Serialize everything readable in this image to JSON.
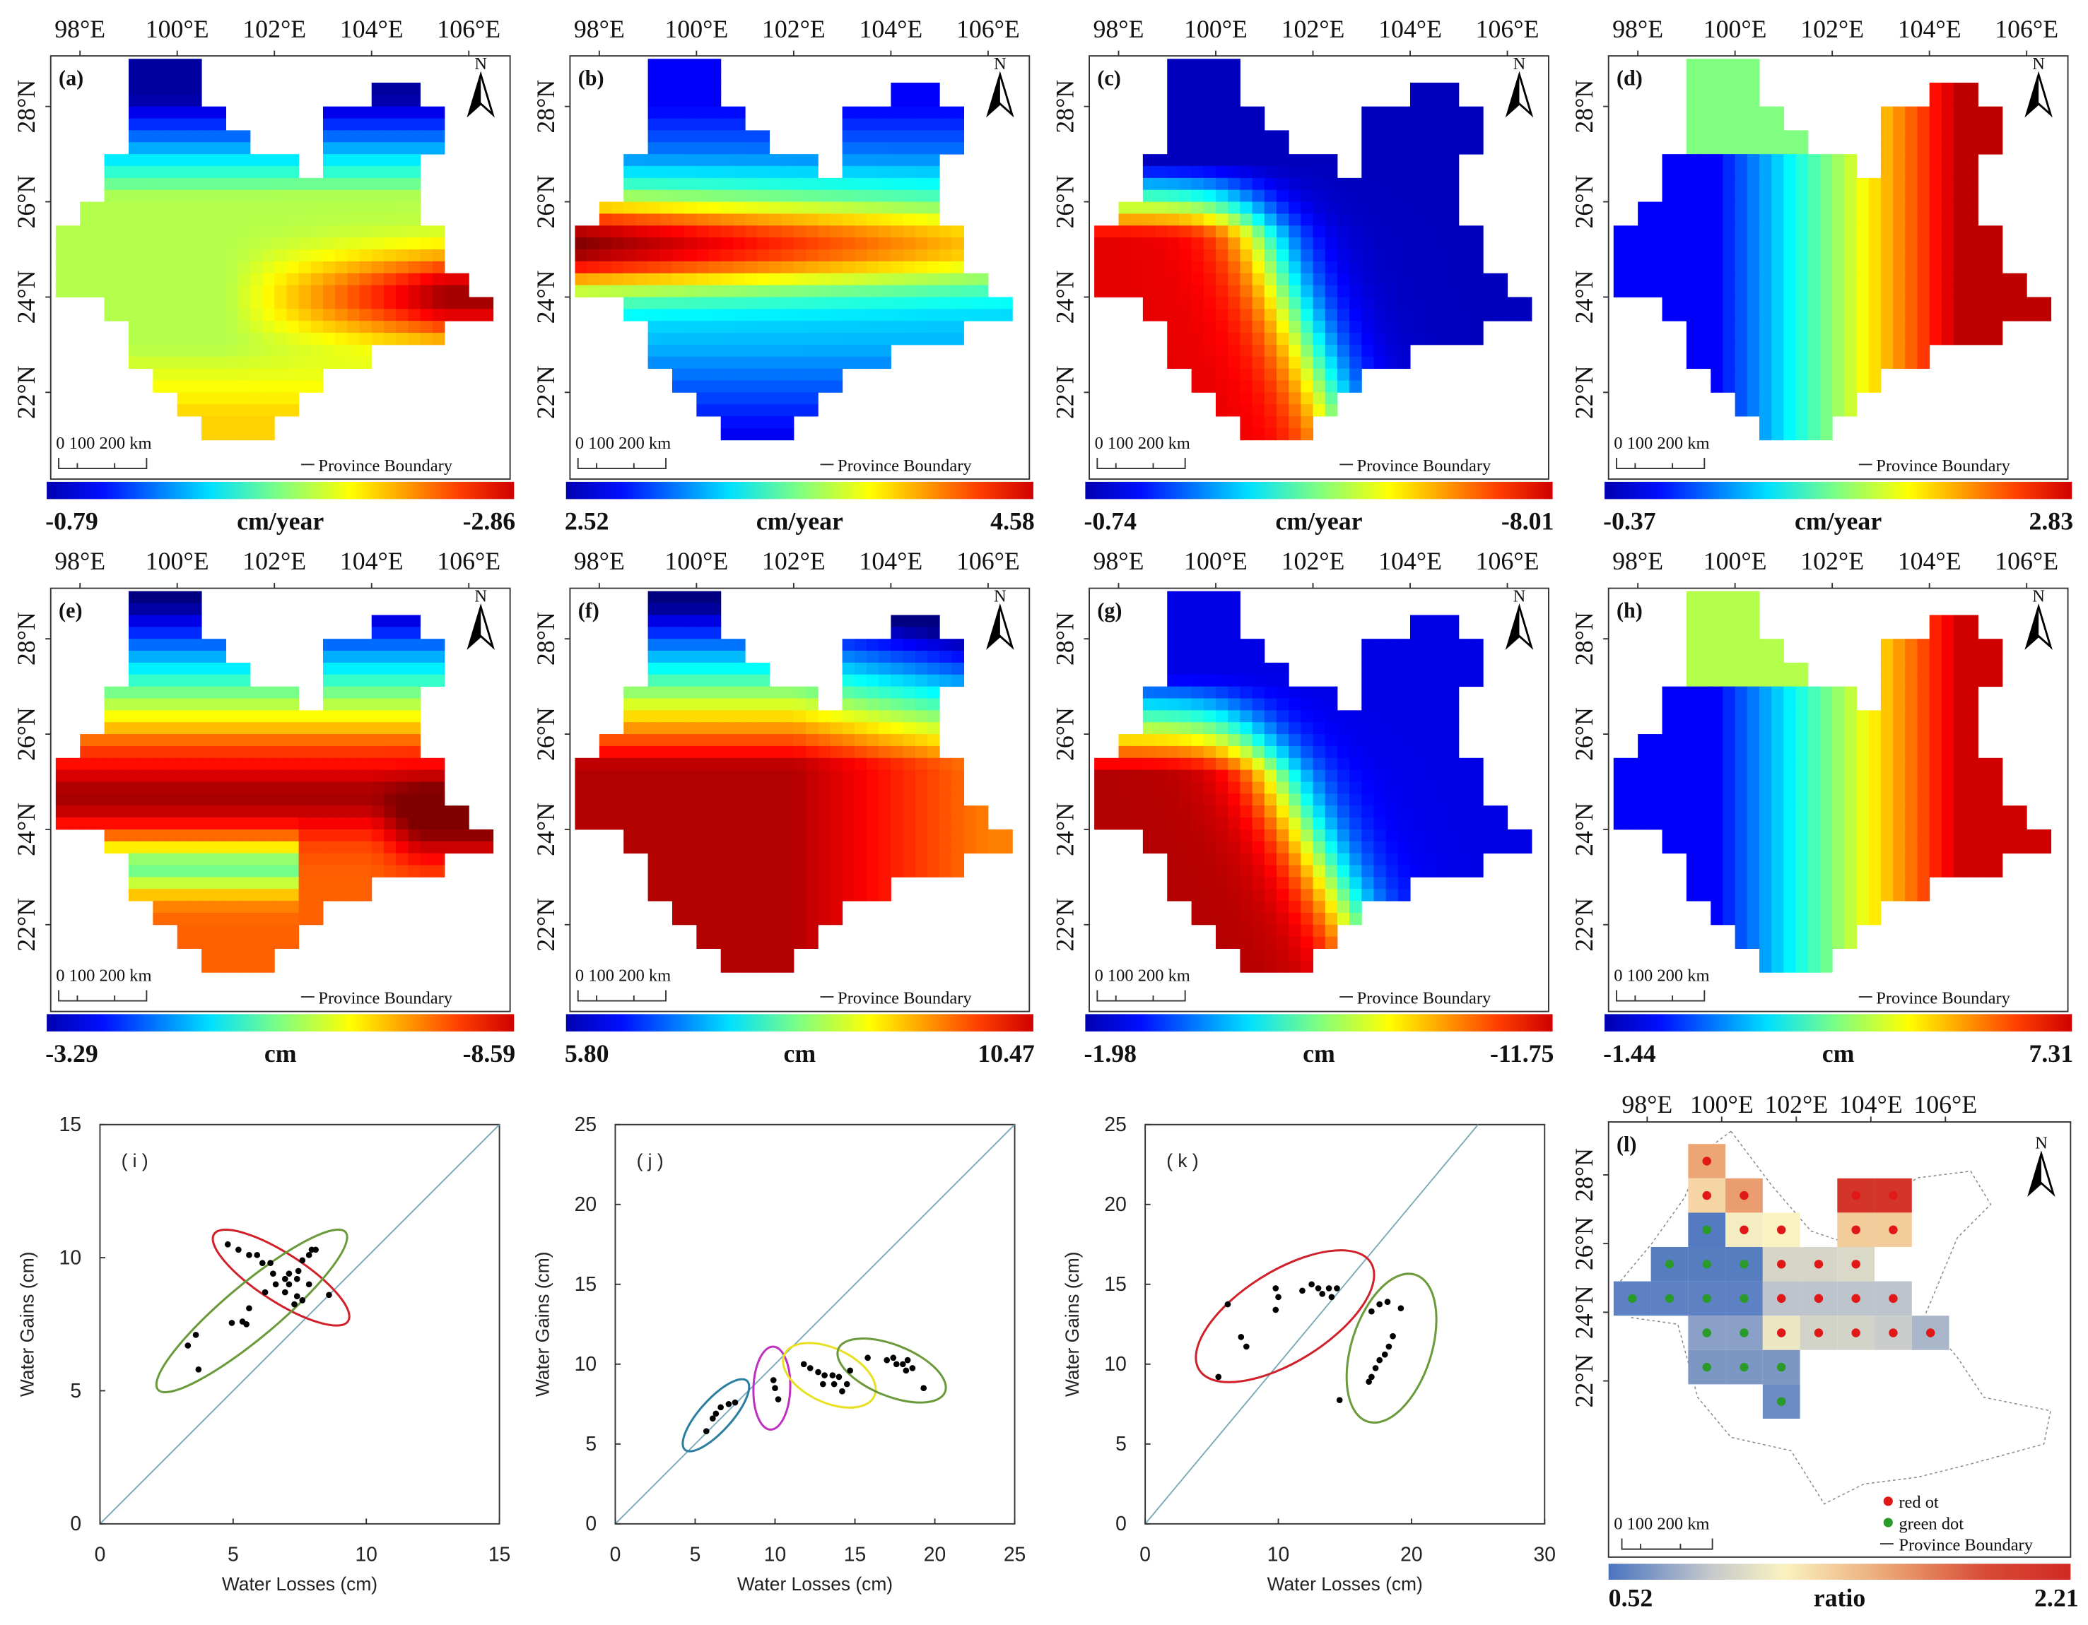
{
  "figure": {
    "lon_ticks": [
      "98°E",
      "100°E",
      "102°E",
      "104°E",
      "106°E"
    ],
    "lat_ticks": [
      "28°N",
      "26°N",
      "24°N",
      "22°N"
    ],
    "scale_bar": "0   100  200 km",
    "boundary_legend": "Province Boundary",
    "north_label": "N"
  },
  "chart_data": [
    {
      "type": "heatmap",
      "panel": "(a)",
      "colorbar": {
        "min": "-0.79",
        "max": "-2.86",
        "unit": "cm/year"
      }
    },
    {
      "type": "heatmap",
      "panel": "(b)",
      "colorbar": {
        "min": "2.52",
        "max": "4.58",
        "unit": "cm/year"
      }
    },
    {
      "type": "heatmap",
      "panel": "(c)",
      "colorbar": {
        "min": "-0.74",
        "max": "-8.01",
        "unit": "cm/year"
      }
    },
    {
      "type": "heatmap",
      "panel": "(d)",
      "colorbar": {
        "min": "-0.37",
        "max": "2.83",
        "unit": "cm/year"
      }
    },
    {
      "type": "heatmap",
      "panel": "(e)",
      "colorbar": {
        "min": "-3.29",
        "max": "-8.59",
        "unit": "cm"
      }
    },
    {
      "type": "heatmap",
      "panel": "(f)",
      "colorbar": {
        "min": "5.80",
        "max": "10.47",
        "unit": "cm"
      }
    },
    {
      "type": "heatmap",
      "panel": "(g)",
      "colorbar": {
        "min": "-1.98",
        "max": "-11.75",
        "unit": "cm"
      }
    },
    {
      "type": "heatmap",
      "panel": "(h)",
      "colorbar": {
        "min": "-1.44",
        "max": "7.31",
        "unit": "cm"
      }
    },
    {
      "type": "scatter",
      "panel": "( i )",
      "xlabel": "Water Losses (cm)",
      "ylabel": "Water Gains  (cm)",
      "xlim": [
        0,
        15
      ],
      "ylim": [
        0,
        15
      ],
      "xticks": [
        "0",
        "5",
        "10",
        "15"
      ],
      "yticks": [
        "0",
        "5",
        "10",
        "15"
      ],
      "points": [
        [
          4.8,
          10.5
        ],
        [
          5.2,
          10.3
        ],
        [
          5.6,
          10.1
        ],
        [
          5.9,
          10.1
        ],
        [
          6.1,
          9.8
        ],
        [
          6.4,
          9.8
        ],
        [
          6.5,
          9.4
        ],
        [
          6.6,
          9.0
        ],
        [
          6.95,
          9.2
        ],
        [
          7.1,
          9.4
        ],
        [
          7.1,
          9.0
        ],
        [
          7.4,
          9.2
        ],
        [
          7.45,
          9.5
        ],
        [
          7.6,
          9.9
        ],
        [
          7.85,
          10.1
        ],
        [
          7.95,
          10.3
        ],
        [
          8.1,
          10.3
        ],
        [
          7.85,
          9.0
        ],
        [
          6.95,
          8.7
        ],
        [
          7.4,
          8.55
        ],
        [
          7.3,
          8.25
        ],
        [
          7.6,
          8.4
        ],
        [
          6.2,
          8.7
        ],
        [
          8.6,
          8.6
        ],
        [
          5.6,
          8.1
        ],
        [
          4.95,
          7.55
        ],
        [
          5.35,
          7.6
        ],
        [
          5.5,
          7.5
        ],
        [
          3.6,
          7.1
        ],
        [
          3.3,
          6.7
        ],
        [
          3.7,
          5.8
        ]
      ],
      "ellipses": [
        {
          "color": "#d0202a",
          "cx": 6.8,
          "cy": 9.25,
          "a": 3.0,
          "b": 0.9,
          "angle_deg": -33
        },
        {
          "color": "#6a9a3a",
          "cx": 5.7,
          "cy": 8.0,
          "a": 4.6,
          "b": 1.0,
          "angle_deg": 40
        }
      ]
    },
    {
      "type": "scatter",
      "panel": "( j )",
      "xlabel": "Water Losses  (cm)",
      "ylabel": "Water Gains  (cm)",
      "xlim": [
        0,
        25
      ],
      "ylim": [
        0,
        25
      ],
      "xticks": [
        "0",
        "5",
        "10",
        "15",
        "20",
        "25"
      ],
      "yticks": [
        "0",
        "5",
        "10",
        "15",
        "20",
        "25"
      ],
      "points": [
        [
          5.7,
          5.8
        ],
        [
          6.1,
          6.6
        ],
        [
          6.3,
          6.9
        ],
        [
          6.6,
          7.3
        ],
        [
          7.1,
          7.5
        ],
        [
          7.5,
          7.6
        ],
        [
          9.9,
          9.0
        ],
        [
          10.0,
          8.5
        ],
        [
          10.2,
          7.8
        ],
        [
          11.8,
          10.0
        ],
        [
          12.2,
          9.75
        ],
        [
          12.7,
          9.5
        ],
        [
          13.1,
          9.3
        ],
        [
          13.6,
          9.3
        ],
        [
          14.0,
          9.2
        ],
        [
          13.7,
          8.75
        ],
        [
          14.2,
          8.3
        ],
        [
          14.5,
          8.75
        ],
        [
          13.0,
          8.75
        ],
        [
          14.7,
          9.6
        ],
        [
          15.8,
          10.4
        ],
        [
          17.0,
          10.25
        ],
        [
          17.4,
          10.4
        ],
        [
          18.0,
          10.0
        ],
        [
          18.3,
          10.25
        ],
        [
          18.6,
          9.75
        ],
        [
          18.2,
          9.6
        ],
        [
          19.3,
          8.5
        ],
        [
          17.6,
          10.0
        ]
      ],
      "ellipses": [
        {
          "color": "#2a7ea0",
          "cx": 6.3,
          "cy": 6.8,
          "a": 2.9,
          "b": 1.0,
          "angle_deg": 48
        },
        {
          "color": "#c030c0",
          "cx": 9.8,
          "cy": 8.5,
          "a": 2.6,
          "b": 1.15,
          "angle_deg": 88
        },
        {
          "color": "#e8e020",
          "cx": 13.4,
          "cy": 9.3,
          "a": 3.1,
          "b": 1.7,
          "angle_deg": -25
        },
        {
          "color": "#6a9a3a",
          "cx": 17.3,
          "cy": 9.6,
          "a": 3.6,
          "b": 1.6,
          "angle_deg": -22
        }
      ]
    },
    {
      "type": "scatter",
      "panel": "( k )",
      "xlabel": "Water Losses  (cm)",
      "ylabel": "Water Gains  (cm)",
      "xlim": [
        0,
        30
      ],
      "ylim": [
        0,
        25
      ],
      "xticks": [
        "0",
        "10",
        "20",
        "30"
      ],
      "yticks": [
        "0",
        "5",
        "10",
        "15",
        "20",
        "25"
      ],
      "points": [
        [
          5.5,
          9.2
        ],
        [
          6.2,
          13.75
        ],
        [
          7.2,
          11.7
        ],
        [
          7.6,
          11.1
        ],
        [
          9.8,
          14.75
        ],
        [
          10.0,
          14.2
        ],
        [
          9.8,
          13.4
        ],
        [
          11.8,
          14.6
        ],
        [
          12.5,
          15.0
        ],
        [
          13.0,
          14.75
        ],
        [
          13.3,
          14.4
        ],
        [
          13.8,
          14.75
        ],
        [
          14.4,
          14.75
        ],
        [
          14.0,
          14.2
        ],
        [
          14.6,
          7.75
        ],
        [
          16.8,
          8.9
        ],
        [
          17.0,
          9.2
        ],
        [
          17.3,
          9.75
        ],
        [
          17.6,
          10.25
        ],
        [
          18.0,
          10.6
        ],
        [
          18.3,
          11.1
        ],
        [
          18.6,
          11.75
        ],
        [
          17.0,
          13.3
        ],
        [
          17.6,
          13.75
        ],
        [
          18.2,
          13.9
        ],
        [
          19.2,
          13.5
        ]
      ],
      "ellipses": [
        {
          "color": "#d0202a",
          "cx": 10.5,
          "cy": 13.0,
          "a": 7.6,
          "b": 3.4,
          "angle_deg": 32
        },
        {
          "color": "#6a9a3a",
          "cx": 18.5,
          "cy": 11.0,
          "a": 5.8,
          "b": 3.0,
          "angle_deg": 72
        }
      ]
    },
    {
      "type": "heatmap",
      "panel": "(l)",
      "colorbar": {
        "min": "0.52",
        "max": "2.21",
        "unit": "ratio"
      },
      "legend": [
        "red ot",
        "green dot",
        "Province Boundary"
      ],
      "cells": [
        {
          "lon": 99.6,
          "lat": 28.4,
          "ratio": 1.55,
          "dot": "red"
        },
        {
          "lon": 99.6,
          "lat": 27.4,
          "ratio": 1.3,
          "dot": "red"
        },
        {
          "lon": 100.6,
          "lat": 27.4,
          "ratio": 1.6,
          "dot": "red"
        },
        {
          "lon": 103.6,
          "lat": 27.4,
          "ratio": 2.15,
          "dot": "red"
        },
        {
          "lon": 104.6,
          "lat": 27.4,
          "ratio": 2.15,
          "dot": "red"
        },
        {
          "lon": 99.6,
          "lat": 26.4,
          "ratio": 0.55,
          "dot": "green"
        },
        {
          "lon": 100.6,
          "lat": 26.4,
          "ratio": 1.12,
          "dot": "red"
        },
        {
          "lon": 101.6,
          "lat": 26.4,
          "ratio": 1.15,
          "dot": "red"
        },
        {
          "lon": 103.6,
          "lat": 26.4,
          "ratio": 1.35,
          "dot": "red"
        },
        {
          "lon": 104.6,
          "lat": 26.4,
          "ratio": 1.35,
          "dot": "red"
        },
        {
          "lon": 98.6,
          "lat": 25.4,
          "ratio": 0.56,
          "dot": "green"
        },
        {
          "lon": 99.6,
          "lat": 25.4,
          "ratio": 0.56,
          "dot": "green"
        },
        {
          "lon": 100.6,
          "lat": 25.4,
          "ratio": 0.56,
          "dot": "green"
        },
        {
          "lon": 101.6,
          "lat": 25.4,
          "ratio": 0.98,
          "dot": "red"
        },
        {
          "lon": 102.6,
          "lat": 25.4,
          "ratio": 0.98,
          "dot": "red"
        },
        {
          "lon": 103.6,
          "lat": 25.4,
          "ratio": 1.0,
          "dot": "red"
        },
        {
          "lon": 97.6,
          "lat": 24.4,
          "ratio": 0.58,
          "dot": "green"
        },
        {
          "lon": 98.6,
          "lat": 24.4,
          "ratio": 0.58,
          "dot": "green"
        },
        {
          "lon": 99.6,
          "lat": 24.4,
          "ratio": 0.58,
          "dot": "green"
        },
        {
          "lon": 100.6,
          "lat": 24.4,
          "ratio": 0.58,
          "dot": "green"
        },
        {
          "lon": 101.6,
          "lat": 24.4,
          "ratio": 0.88,
          "dot": "red"
        },
        {
          "lon": 102.6,
          "lat": 24.4,
          "ratio": 0.88,
          "dot": "red"
        },
        {
          "lon": 103.6,
          "lat": 24.4,
          "ratio": 0.88,
          "dot": "red"
        },
        {
          "lon": 104.6,
          "lat": 24.4,
          "ratio": 0.88,
          "dot": "red"
        },
        {
          "lon": 99.6,
          "lat": 23.4,
          "ratio": 0.72,
          "dot": "green"
        },
        {
          "lon": 100.6,
          "lat": 23.4,
          "ratio": 0.72,
          "dot": "green"
        },
        {
          "lon": 101.6,
          "lat": 23.4,
          "ratio": 1.08,
          "dot": "red"
        },
        {
          "lon": 102.6,
          "lat": 23.4,
          "ratio": 0.97,
          "dot": "red"
        },
        {
          "lon": 103.6,
          "lat": 23.4,
          "ratio": 0.97,
          "dot": "red"
        },
        {
          "lon": 104.6,
          "lat": 23.4,
          "ratio": 0.93,
          "dot": "red"
        },
        {
          "lon": 105.6,
          "lat": 23.4,
          "ratio": 0.82,
          "dot": "red"
        },
        {
          "lon": 99.6,
          "lat": 22.4,
          "ratio": 0.68,
          "dot": "green"
        },
        {
          "lon": 100.6,
          "lat": 22.4,
          "ratio": 0.68,
          "dot": "green"
        },
        {
          "lon": 101.6,
          "lat": 22.4,
          "ratio": 0.68,
          "dot": "green"
        },
        {
          "lon": 101.6,
          "lat": 21.4,
          "ratio": 0.63,
          "dot": "green"
        }
      ]
    }
  ]
}
